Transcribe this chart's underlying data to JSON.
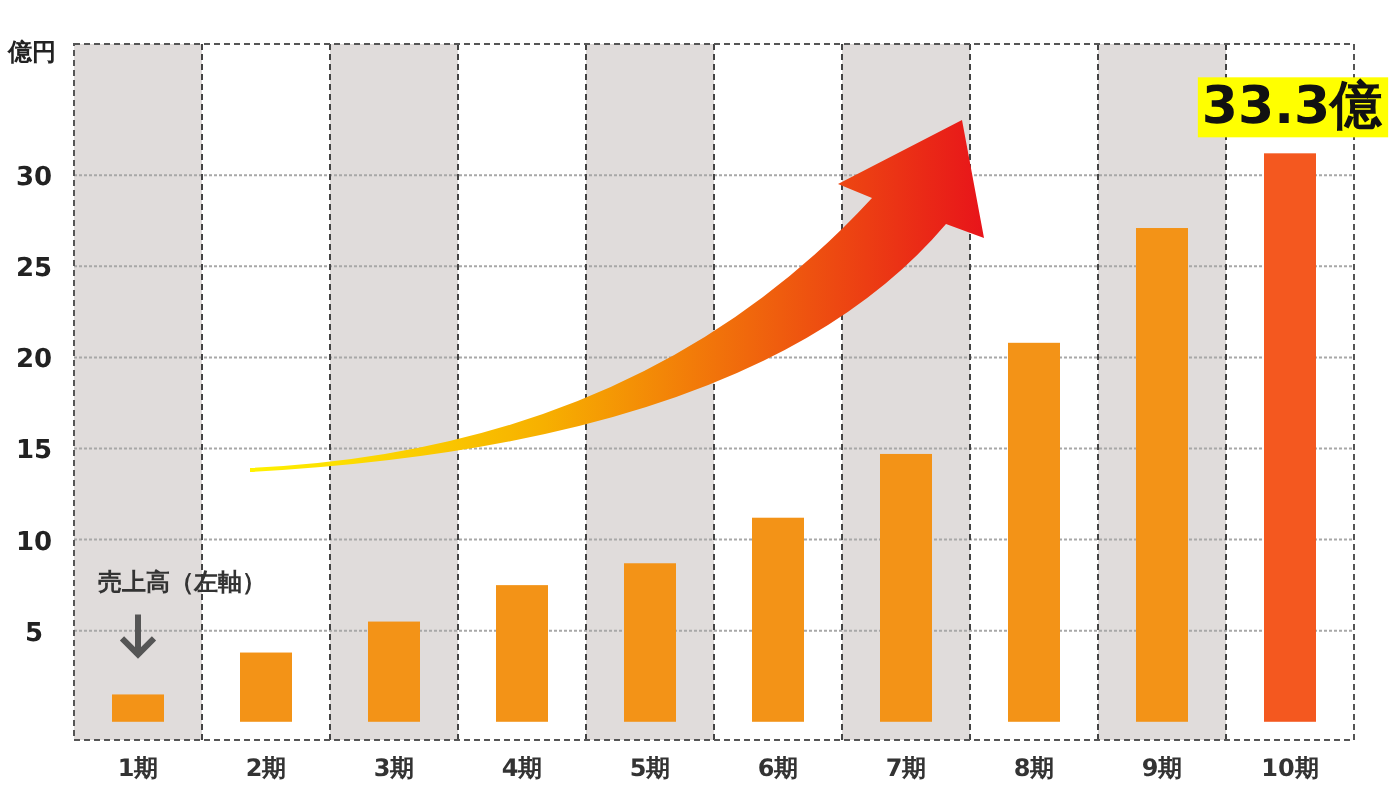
{
  "chart_data": {
    "type": "bar",
    "ylabel": "億円",
    "categories": [
      "1期",
      "2期",
      "3期",
      "4期",
      "5期",
      "6期",
      "7期",
      "8期",
      "9期",
      "10期"
    ],
    "values": [
      1.5,
      3.8,
      5.5,
      7.5,
      8.7,
      11.2,
      14.7,
      20.8,
      27.1,
      31.2
    ],
    "colors": [
      "#f39317",
      "#f39317",
      "#f39317",
      "#f39317",
      "#f39317",
      "#f39317",
      "#f39317",
      "#f39317",
      "#f39317",
      "#f4581f"
    ],
    "ylim": [
      -1,
      37.2
    ],
    "yticks": [
      5,
      10,
      15,
      20,
      25,
      30
    ],
    "grid": true,
    "annotations": [
      "売上高（左軸）",
      {
        "text": "33.3億",
        "x": "10期",
        "y": 31.2
      }
    ]
  }
}
